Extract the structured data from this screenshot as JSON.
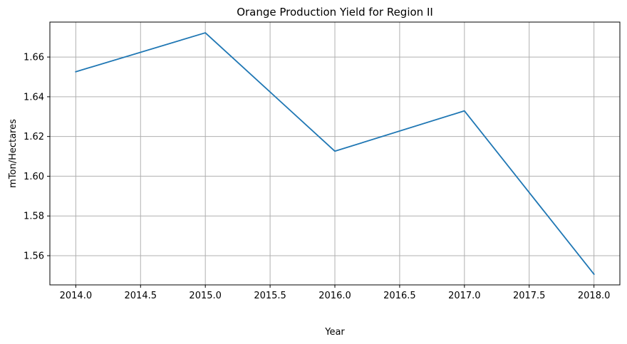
{
  "chart_data": {
    "type": "line",
    "title": "Orange Production Yield for Region II",
    "xlabel": "Year",
    "ylabel": "mTon/Hectares",
    "x": [
      2014.0,
      2015.0,
      2016.0,
      2017.0,
      2018.0
    ],
    "series": [
      {
        "values": [
          1.6526,
          1.6722,
          1.6126,
          1.6329,
          1.5507
        ],
        "color": "#1f77b4"
      }
    ],
    "xlim": [
      2013.8,
      2018.2
    ],
    "ylim": [
      1.5453,
      1.6776
    ],
    "x_ticks": [
      2014.0,
      2014.5,
      2015.0,
      2015.5,
      2016.0,
      2016.5,
      2017.0,
      2017.5,
      2018.0
    ],
    "x_tick_labels": [
      "2014.0",
      "2014.5",
      "2015.0",
      "2015.5",
      "2016.0",
      "2016.5",
      "2017.0",
      "2017.5",
      "2018.0"
    ],
    "y_ticks": [
      1.56,
      1.58,
      1.6,
      1.62,
      1.64,
      1.66
    ],
    "y_tick_labels": [
      "1.56",
      "1.58",
      "1.60",
      "1.62",
      "1.64",
      "1.66"
    ],
    "grid": true,
    "grid_color": "#b0b0b0",
    "legend": false
  }
}
